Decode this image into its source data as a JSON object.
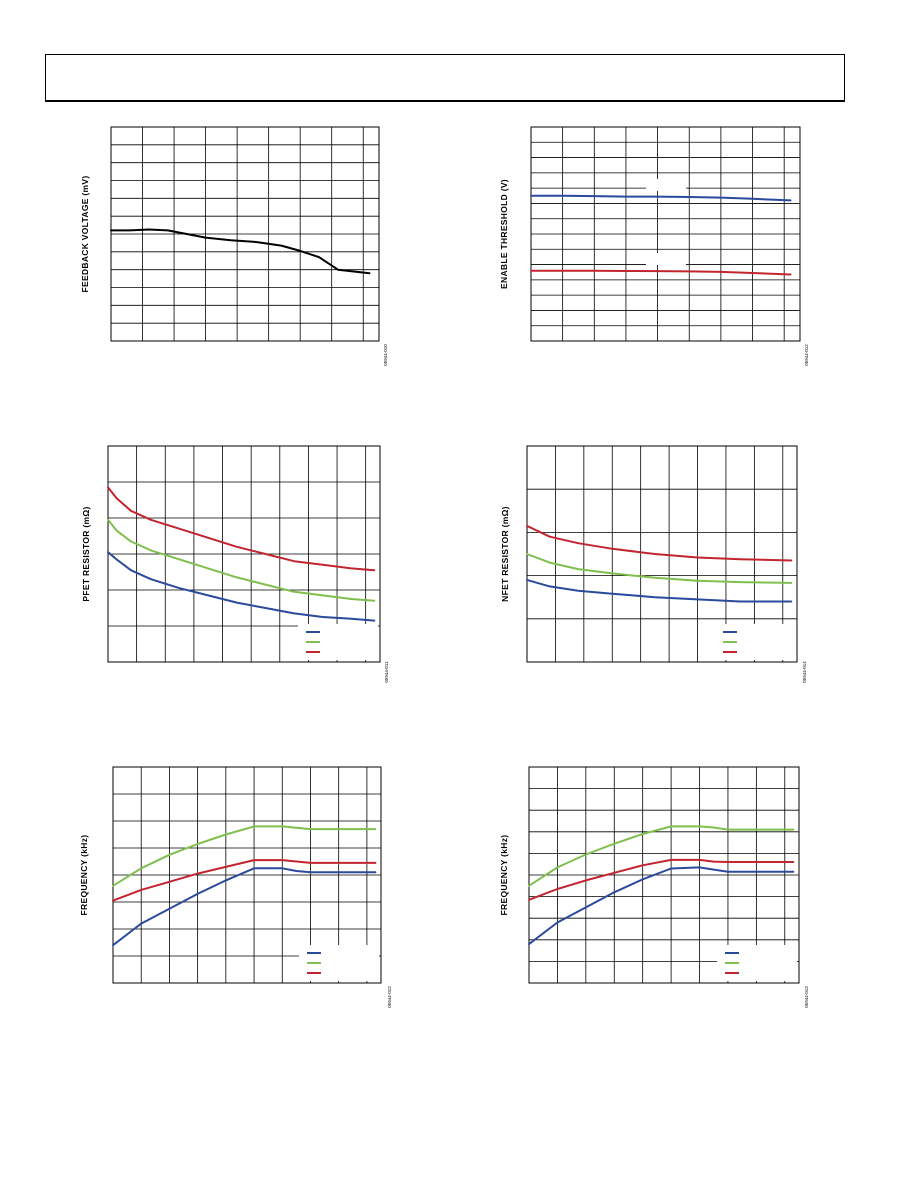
{
  "header": {
    "title": ""
  },
  "chart_data": [
    {
      "id": "c1",
      "type": "line",
      "ylabel": "FEEDBACK VOLTAGE (mV)",
      "fig_id": "05944-010",
      "grid": true,
      "cols": 8.5,
      "rows": 12,
      "xlim": [
        0,
        8.5
      ],
      "ylim": [
        0,
        12
      ],
      "series": [
        {
          "color": "#000000",
          "x": [
            0,
            0.6,
            1.2,
            1.8,
            2.4,
            3.0,
            3.8,
            4.6,
            5.4,
            6.0,
            6.6,
            7.2,
            8.2
          ],
          "y": [
            6.2,
            6.2,
            6.25,
            6.2,
            6.0,
            5.8,
            5.65,
            5.55,
            5.35,
            5.05,
            4.7,
            4.0,
            3.8
          ]
        }
      ]
    },
    {
      "id": "c2",
      "type": "line",
      "ylabel": "ENABLE THRESHOLD (V)",
      "fig_id": "05944-012",
      "grid": true,
      "cols": 8.5,
      "rows": 14,
      "xlim": [
        0,
        8.5
      ],
      "ylim": [
        0,
        14
      ],
      "series": [
        {
          "color": "#2b4a9b",
          "x": [
            0,
            1,
            2,
            3,
            4,
            5,
            6,
            7,
            8.2
          ],
          "y": [
            9.5,
            9.5,
            9.48,
            9.45,
            9.45,
            9.42,
            9.38,
            9.3,
            9.2
          ]
        },
        {
          "color": "#c32530",
          "x": [
            0,
            1,
            2,
            3,
            4,
            5,
            6,
            7,
            8.2
          ],
          "y": [
            4.6,
            4.6,
            4.6,
            4.58,
            4.57,
            4.55,
            4.52,
            4.45,
            4.35
          ]
        }
      ]
    },
    {
      "id": "c3",
      "type": "line",
      "ylabel": "PFET RESISTOR (mΩ)",
      "fig_id": "05944-011",
      "grid": true,
      "cols": 9.5,
      "rows": 6,
      "xlim": [
        0,
        9.5
      ],
      "ylim": [
        0,
        6
      ],
      "legend": "bottom-right",
      "series": [
        {
          "color": "#2b4a9b",
          "x": [
            0,
            0.3,
            0.8,
            1.5,
            2.5,
            3.5,
            4.5,
            5.5,
            6.5,
            7.5,
            8.5,
            9.3
          ],
          "y": [
            3.05,
            2.85,
            2.55,
            2.3,
            2.05,
            1.85,
            1.65,
            1.5,
            1.35,
            1.25,
            1.2,
            1.15
          ]
        },
        {
          "color": "#7fbf4d",
          "x": [
            0,
            0.3,
            0.8,
            1.5,
            2.5,
            3.5,
            4.5,
            5.5,
            6.5,
            7.5,
            8.5,
            9.3
          ],
          "y": [
            3.95,
            3.65,
            3.35,
            3.1,
            2.85,
            2.6,
            2.35,
            2.15,
            1.95,
            1.85,
            1.75,
            1.7
          ]
        },
        {
          "color": "#c32530",
          "x": [
            0,
            0.3,
            0.8,
            1.5,
            2.5,
            3.5,
            4.5,
            5.5,
            6.5,
            7.5,
            8.5,
            9.3
          ],
          "y": [
            4.85,
            4.55,
            4.2,
            3.95,
            3.7,
            3.45,
            3.2,
            3.0,
            2.8,
            2.7,
            2.6,
            2.55
          ]
        }
      ]
    },
    {
      "id": "c4",
      "type": "line",
      "ylabel": "NFET RESISTOR (mΩ)",
      "fig_id": "05944-014",
      "grid": true,
      "cols": 9.5,
      "rows": 5,
      "xlim": [
        0,
        9.5
      ],
      "ylim": [
        0,
        5
      ],
      "legend": "bottom-right",
      "series": [
        {
          "color": "#2b4a9b",
          "x": [
            0,
            0.8,
            1.8,
            3.0,
            4.5,
            6.0,
            7.5,
            9.3
          ],
          "y": [
            1.9,
            1.75,
            1.65,
            1.58,
            1.5,
            1.45,
            1.4,
            1.4
          ]
        },
        {
          "color": "#7fbf4d",
          "x": [
            0,
            0.8,
            1.8,
            3.0,
            4.5,
            6.0,
            7.5,
            9.3
          ],
          "y": [
            2.5,
            2.3,
            2.15,
            2.05,
            1.95,
            1.88,
            1.85,
            1.83
          ]
        },
        {
          "color": "#c32530",
          "x": [
            0,
            0.8,
            1.8,
            3.0,
            4.5,
            6.0,
            7.5,
            9.3
          ],
          "y": [
            3.15,
            2.9,
            2.75,
            2.62,
            2.5,
            2.42,
            2.38,
            2.35
          ]
        }
      ]
    },
    {
      "id": "c5",
      "type": "line",
      "ylabel": "FREQUENCY (kHz)",
      "fig_id": "05944-012",
      "grid": true,
      "cols": 9.5,
      "rows": 8,
      "xlim": [
        0,
        9.5
      ],
      "ylim": [
        0,
        8
      ],
      "legend": "bottom-right",
      "series": [
        {
          "color": "#2b4a9b",
          "x": [
            0,
            1,
            2,
            3,
            4,
            5,
            6,
            6.5,
            7,
            8,
            9.3
          ],
          "y": [
            1.4,
            2.2,
            2.75,
            3.3,
            3.8,
            4.25,
            4.25,
            4.15,
            4.1,
            4.1,
            4.1
          ]
        },
        {
          "color": "#7fbf4d",
          "x": [
            0,
            1,
            2,
            3,
            4,
            5,
            6,
            6.5,
            7,
            8,
            9.3
          ],
          "y": [
            3.6,
            4.25,
            4.75,
            5.15,
            5.5,
            5.8,
            5.8,
            5.75,
            5.7,
            5.7,
            5.7
          ]
        },
        {
          "color": "#c32530",
          "x": [
            0,
            1,
            2,
            3,
            4,
            5,
            6,
            6.5,
            7,
            8,
            9.3
          ],
          "y": [
            3.05,
            3.45,
            3.75,
            4.05,
            4.3,
            4.55,
            4.55,
            4.5,
            4.45,
            4.45,
            4.45
          ]
        }
      ]
    },
    {
      "id": "c6",
      "type": "line",
      "ylabel": "FREQUENCY (kHz)",
      "fig_id": "05944-013",
      "grid": true,
      "cols": 9.5,
      "rows": 10,
      "xlim": [
        0,
        9.5
      ],
      "ylim": [
        0,
        10
      ],
      "legend": "bottom-right",
      "series": [
        {
          "color": "#2b4a9b",
          "x": [
            0,
            1,
            2,
            3,
            4,
            5,
            6,
            6.5,
            7,
            8,
            9.3
          ],
          "y": [
            1.8,
            2.8,
            3.5,
            4.2,
            4.8,
            5.3,
            5.35,
            5.25,
            5.15,
            5.15,
            5.15
          ]
        },
        {
          "color": "#7fbf4d",
          "x": [
            0,
            1,
            2,
            3,
            4,
            5,
            6,
            6.5,
            7,
            8,
            9.3
          ],
          "y": [
            4.5,
            5.35,
            5.95,
            6.45,
            6.9,
            7.25,
            7.25,
            7.2,
            7.1,
            7.1,
            7.1
          ]
        },
        {
          "color": "#c32530",
          "x": [
            0,
            1,
            2,
            3,
            4,
            5,
            6,
            6.5,
            7,
            8,
            9.3
          ],
          "y": [
            3.85,
            4.35,
            4.75,
            5.1,
            5.45,
            5.7,
            5.7,
            5.62,
            5.6,
            5.6,
            5.6
          ]
        }
      ]
    }
  ]
}
